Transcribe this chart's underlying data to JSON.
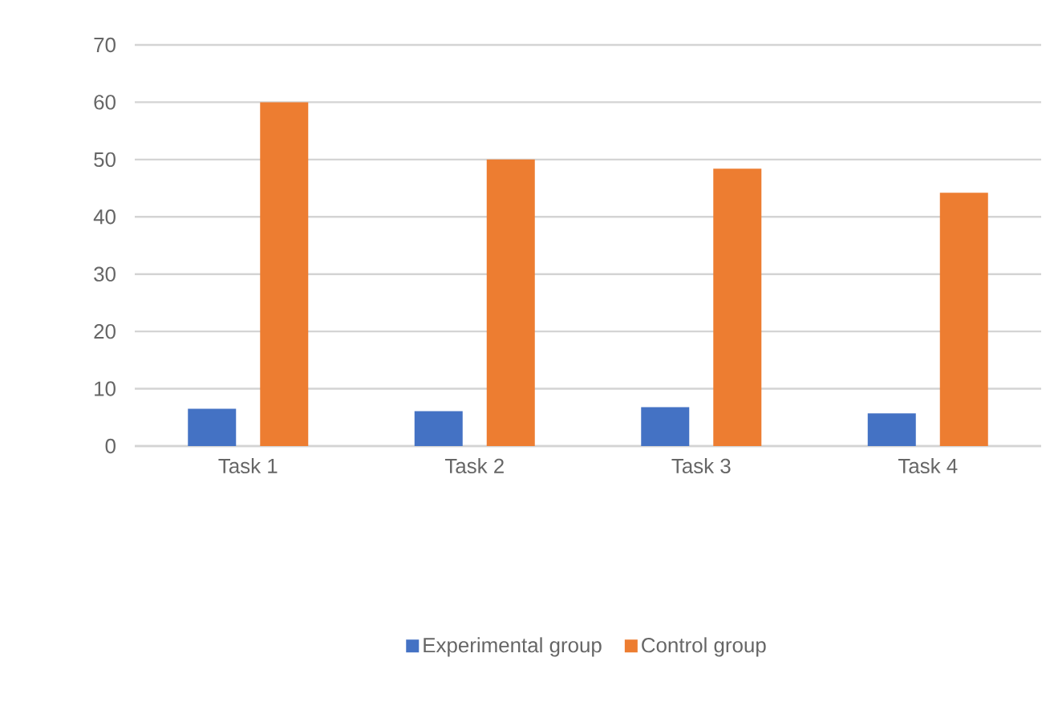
{
  "chart_data": {
    "type": "bar",
    "categories": [
      "Task 1",
      "Task 2",
      "Task 3",
      "Task 4"
    ],
    "series": [
      {
        "name": "Experimental group",
        "color": "#4472c4",
        "values": [
          6.5,
          6.1,
          6.8,
          5.7
        ]
      },
      {
        "name": "Control group",
        "color": "#ed7d31",
        "values": [
          60,
          50,
          48.4,
          44.2
        ]
      }
    ],
    "ylim": [
      0,
      70
    ],
    "yticks": [
      0,
      10,
      20,
      30,
      40,
      50,
      60,
      70
    ],
    "grid": "y",
    "legend": "bottom"
  }
}
